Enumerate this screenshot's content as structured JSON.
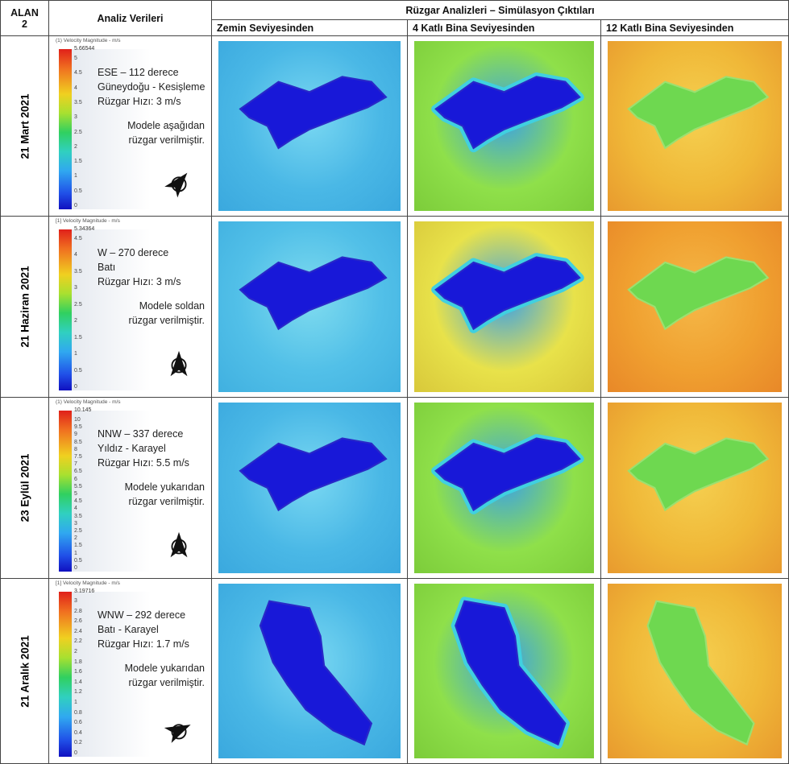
{
  "header": {
    "alan_label": "ALAN",
    "alan_number": "2",
    "analysis_header": "Analiz Verileri",
    "simulation_header": "Rüzgar Analizleri – Simülasyon Çıktıları",
    "levels": [
      "Zemin Seviyesinden",
      "4 Katlı Bina Seviyesinden",
      "12 Katlı Bina Seviyesinden"
    ]
  },
  "rows": [
    {
      "date": "21 Mart 2021",
      "legend": {
        "title": "(1) Velocity Magnitude - m/s",
        "max": "5.66544",
        "ticks": [
          "5",
          "4.5",
          "4",
          "3.5",
          "3",
          "2.5",
          "2",
          "1.5",
          "1",
          "0.5",
          "0"
        ]
      },
      "lines": [
        "ESE – 112 derece",
        "Güneydoğu - Kesişleme",
        "Rüzgar Hızı: 3 m/s"
      ],
      "note": [
        "Modele aşağıdan",
        "rüzgar verilmiştir."
      ]
    },
    {
      "date": "21 Haziran 2021",
      "legend": {
        "title": "[1] Velocity Magnitude - m/s",
        "max": "5.34364",
        "ticks": [
          "4.5",
          "4",
          "3.5",
          "3",
          "2.5",
          "2",
          "1.5",
          "1",
          "0.5",
          "0"
        ]
      },
      "lines": [
        "W – 270 derece",
        "Batı",
        "Rüzgar Hızı: 3 m/s"
      ],
      "note": [
        "Modele soldan",
        "rüzgar verilmiştir."
      ]
    },
    {
      "date": "23 Eylül 2021",
      "legend": {
        "title": "(1) Velocity Magnitude - m/s",
        "max": "10.145",
        "ticks": [
          "10",
          "9.5",
          "9",
          "8.5",
          "8",
          "7.5",
          "7",
          "6.5",
          "6",
          "5.5",
          "5",
          "4.5",
          "4",
          "3.5",
          "3",
          "2.5",
          "2",
          "1.5",
          "1",
          "0.5",
          "0"
        ]
      },
      "lines": [
        "NNW – 337 derece",
        "Yıldız - Karayel",
        "Rüzgar Hızı: 5.5 m/s"
      ],
      "note": [
        "Modele yukarıdan",
        "rüzgar verilmiştir."
      ]
    },
    {
      "date": "21 Aralık 2021",
      "legend": {
        "title": "[1] Velocity Magnitude - m/s",
        "max": "3.19716",
        "ticks": [
          "3",
          "2.8",
          "2.6",
          "2.4",
          "2.2",
          "2",
          "1.8",
          "1.6",
          "1.4",
          "1.2",
          "1",
          "0.8",
          "0.6",
          "0.4",
          "0.2",
          "0"
        ]
      },
      "lines": [
        "WNW – 292 derece",
        "Batı - Karayel",
        "Rüzgar Hızı: 1.7 m/s"
      ],
      "note": [
        "Modele yukarıdan",
        "rüzgar verilmiştir."
      ]
    }
  ]
}
